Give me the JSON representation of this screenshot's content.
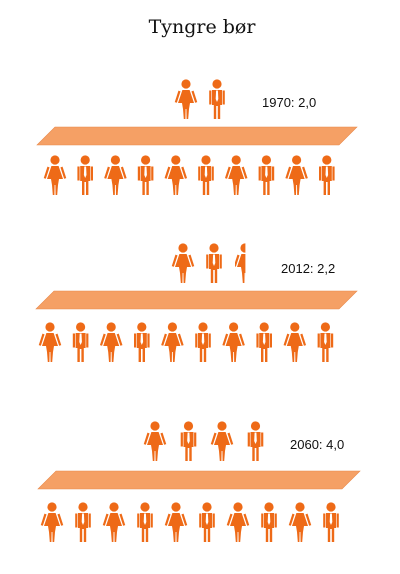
{
  "chart_data": {
    "type": "pictogram",
    "title": "Tyngre bør",
    "categories": [
      "1970",
      "2012",
      "2060"
    ],
    "series": [
      {
        "values": [
          2.0,
          2.2,
          4.0
        ]
      }
    ],
    "labels": [
      "1970: 2,0",
      "2012: 2,2",
      "2060: 4,0"
    ],
    "base_figures": 10,
    "colors": {
      "figure": "#EE6A17",
      "plank": "#F5A065",
      "plank_edge": "#E8894B"
    }
  }
}
